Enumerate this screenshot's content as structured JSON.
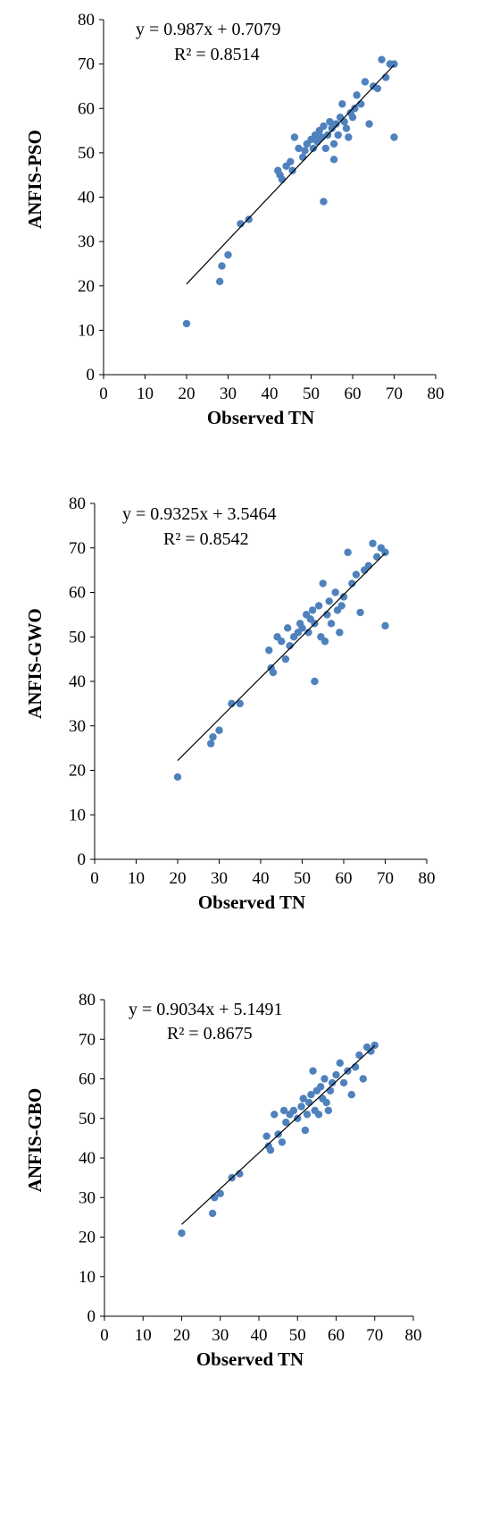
{
  "figure": {
    "colors": {
      "point": "#4f81bd",
      "trendline": "#000000",
      "axis": "#000000"
    }
  },
  "chart_data": [
    {
      "type": "scatter",
      "ylabel": "ANFIS-PSO",
      "xlabel": "Observed TN",
      "xlim": [
        0,
        80
      ],
      "ylim": [
        0,
        80
      ],
      "xticks": [
        "0",
        "10",
        "20",
        "30",
        "40",
        "50",
        "60",
        "70",
        "80"
      ],
      "yticks": [
        "0",
        "10",
        "20",
        "30",
        "40",
        "50",
        "60",
        "70",
        "80"
      ],
      "grid": false,
      "equation": "y = 0.987x + 0.7079",
      "r_squared": "R² = 0.8514",
      "trendline": {
        "slope": 0.987,
        "intercept": 0.7079,
        "x_range": [
          20,
          70
        ]
      },
      "points": [
        [
          20,
          11.5
        ],
        [
          28,
          21
        ],
        [
          28.5,
          24.5
        ],
        [
          30,
          27
        ],
        [
          33,
          34
        ],
        [
          35,
          35
        ],
        [
          42,
          46
        ],
        [
          42.5,
          45
        ],
        [
          43,
          44
        ],
        [
          44,
          47
        ],
        [
          45,
          48
        ],
        [
          45.5,
          46
        ],
        [
          46,
          53.5
        ],
        [
          47,
          51
        ],
        [
          48,
          49
        ],
        [
          48.5,
          50.5
        ],
        [
          49,
          52
        ],
        [
          50,
          53
        ],
        [
          50.5,
          51
        ],
        [
          51,
          54
        ],
        [
          51.5,
          52.5
        ],
        [
          52,
          55
        ],
        [
          52.5,
          53.5
        ],
        [
          53,
          39
        ],
        [
          53,
          56
        ],
        [
          53.5,
          51
        ],
        [
          54,
          54
        ],
        [
          54.5,
          57
        ],
        [
          55,
          55.5
        ],
        [
          55.5,
          48.5
        ],
        [
          55.5,
          52
        ],
        [
          56,
          56.5
        ],
        [
          56.5,
          54
        ],
        [
          57,
          58
        ],
        [
          57.5,
          61
        ],
        [
          58,
          57
        ],
        [
          58.5,
          55.5
        ],
        [
          59,
          53.5
        ],
        [
          59.5,
          59
        ],
        [
          60,
          58
        ],
        [
          60.5,
          60
        ],
        [
          61,
          63
        ],
        [
          62,
          61
        ],
        [
          63,
          66
        ],
        [
          64,
          56.5
        ],
        [
          65,
          65
        ],
        [
          66,
          64.5
        ],
        [
          67,
          71
        ],
        [
          68,
          67
        ],
        [
          69,
          70
        ],
        [
          70,
          53.5
        ],
        [
          70,
          70
        ]
      ]
    },
    {
      "type": "scatter",
      "ylabel": "ANFIS-GWO",
      "xlabel": "Observed TN",
      "xlim": [
        0,
        80
      ],
      "ylim": [
        0,
        80
      ],
      "xticks": [
        "0",
        "10",
        "20",
        "30",
        "40",
        "50",
        "60",
        "70",
        "80"
      ],
      "yticks": [
        "0",
        "10",
        "20",
        "30",
        "40",
        "50",
        "60",
        "70",
        "80"
      ],
      "grid": false,
      "equation": "y = 0.9325x + 3.5464",
      "r_squared": "R² = 0.8542",
      "trendline": {
        "slope": 0.9325,
        "intercept": 3.5464,
        "x_range": [
          20,
          70
        ]
      },
      "points": [
        [
          20,
          18.5
        ],
        [
          28,
          26
        ],
        [
          28.5,
          27.5
        ],
        [
          30,
          29
        ],
        [
          33,
          35
        ],
        [
          35,
          35
        ],
        [
          42,
          47
        ],
        [
          42.5,
          43
        ],
        [
          43,
          42
        ],
        [
          44,
          50
        ],
        [
          45,
          49
        ],
        [
          46,
          45
        ],
        [
          46.5,
          52
        ],
        [
          47,
          48
        ],
        [
          48,
          50
        ],
        [
          49,
          51
        ],
        [
          49.5,
          53
        ],
        [
          50,
          52
        ],
        [
          51,
          55
        ],
        [
          51.5,
          51
        ],
        [
          52,
          54
        ],
        [
          52.5,
          56
        ],
        [
          53,
          40
        ],
        [
          53,
          53
        ],
        [
          54,
          57
        ],
        [
          54.5,
          50
        ],
        [
          55,
          62
        ],
        [
          55.5,
          49
        ],
        [
          56,
          55
        ],
        [
          56.5,
          58
        ],
        [
          57,
          53
        ],
        [
          58,
          60
        ],
        [
          58.5,
          56
        ],
        [
          59,
          51
        ],
        [
          59.5,
          57
        ],
        [
          60,
          59
        ],
        [
          61,
          69
        ],
        [
          62,
          62
        ],
        [
          63,
          64
        ],
        [
          64,
          55.5
        ],
        [
          65,
          65
        ],
        [
          66,
          66
        ],
        [
          67,
          71
        ],
        [
          68,
          68
        ],
        [
          69,
          70
        ],
        [
          70,
          52.5
        ],
        [
          70,
          69
        ]
      ]
    },
    {
      "type": "scatter",
      "ylabel": "ANFIS-GBO",
      "xlabel": "Observed TN",
      "xlim": [
        0,
        80
      ],
      "ylim": [
        0,
        80
      ],
      "xticks": [
        "0",
        "10",
        "20",
        "30",
        "40",
        "50",
        "60",
        "70",
        "80"
      ],
      "yticks": [
        "0",
        "10",
        "20",
        "30",
        "40",
        "50",
        "60",
        "70",
        "80"
      ],
      "grid": false,
      "equation": "y = 0.9034x + 5.1491",
      "r_squared": "R² = 0.8675",
      "trendline": {
        "slope": 0.9034,
        "intercept": 5.1491,
        "x_range": [
          20,
          70
        ]
      },
      "points": [
        [
          20,
          21
        ],
        [
          28,
          26
        ],
        [
          28.5,
          30
        ],
        [
          30,
          31
        ],
        [
          33,
          35
        ],
        [
          35,
          36
        ],
        [
          42,
          45.5
        ],
        [
          42.5,
          43
        ],
        [
          43,
          42
        ],
        [
          44,
          51
        ],
        [
          45,
          46
        ],
        [
          46,
          44
        ],
        [
          46.5,
          52
        ],
        [
          47,
          49
        ],
        [
          48,
          51
        ],
        [
          49,
          52
        ],
        [
          50,
          50
        ],
        [
          51,
          53
        ],
        [
          51.5,
          55
        ],
        [
          52,
          47
        ],
        [
          52.5,
          51
        ],
        [
          53,
          54
        ],
        [
          53.5,
          56
        ],
        [
          54,
          62
        ],
        [
          54.5,
          52
        ],
        [
          55,
          57
        ],
        [
          55.5,
          51
        ],
        [
          56,
          58
        ],
        [
          56.5,
          55
        ],
        [
          57,
          60
        ],
        [
          57.5,
          54
        ],
        [
          58,
          52
        ],
        [
          58.5,
          57
        ],
        [
          59,
          59
        ],
        [
          60,
          61
        ],
        [
          61,
          64
        ],
        [
          62,
          59
        ],
        [
          63,
          62
        ],
        [
          64,
          56
        ],
        [
          65,
          63
        ],
        [
          66,
          66
        ],
        [
          67,
          60
        ],
        [
          68,
          68
        ],
        [
          69,
          67
        ],
        [
          70,
          68.5
        ]
      ]
    }
  ]
}
